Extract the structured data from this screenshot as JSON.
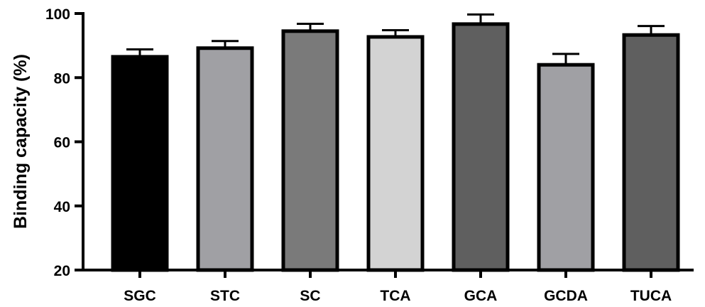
{
  "chart_data": {
    "type": "bar",
    "title": "",
    "xlabel": "",
    "ylabel": "Binding capacity (%)",
    "ylim": [
      20,
      100
    ],
    "yticks": [
      20,
      40,
      60,
      80,
      100
    ],
    "categories": [
      "SGC",
      "STC",
      "SC",
      "TCA",
      "GCA",
      "GCDA",
      "TUCA"
    ],
    "values": [
      86.5,
      89.2,
      94.5,
      92.7,
      96.7,
      84.0,
      93.3
    ],
    "errors": [
      2.3,
      2.2,
      2.3,
      2.1,
      3.0,
      3.4,
      2.8
    ],
    "colors": [
      "#000000",
      "#a0a0a4",
      "#7a7a7a",
      "#d3d3d3",
      "#5f5f5f",
      "#a0a0a4",
      "#5f5f5f"
    ],
    "grid": false,
    "legend": "none"
  }
}
